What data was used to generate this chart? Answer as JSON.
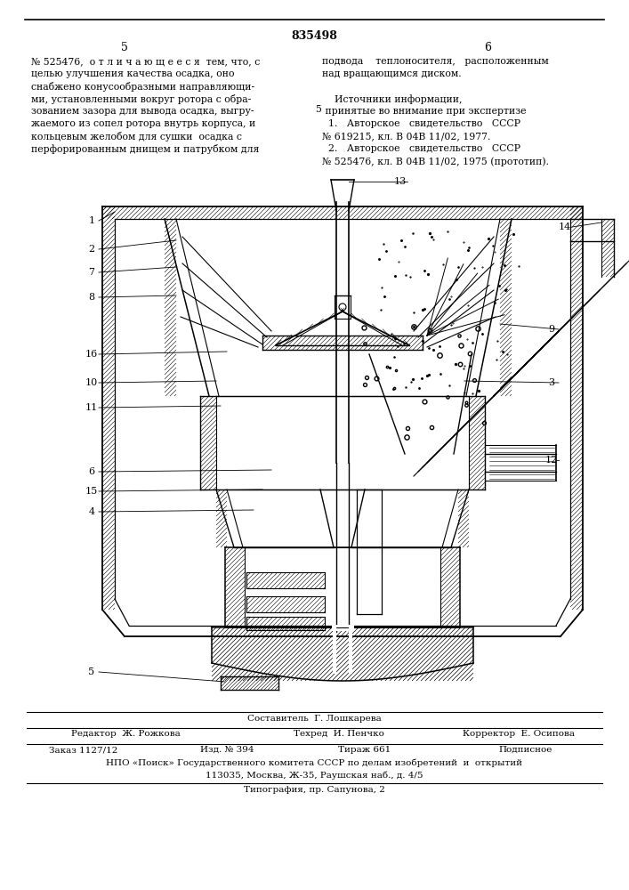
{
  "patent_number": "835498",
  "page_left": "5",
  "page_right": "6",
  "left_column": [
    "№ 525476,  о т л и ч а ю щ е е с я  тем, что, с",
    "целью улучшения качества осадка, оно",
    "снабжено конусообразными направляющи-",
    "ми, установленными вокруг ротора с обра-",
    "зованием зазора для вывода осадка, выгру-",
    "жаемого из сопел ротора внутрь корпуса, и",
    "кольцевым желобом для сушки  осадка с",
    "перфорированным днищем и патрубком для"
  ],
  "right_column": [
    "подвода    теплоносителя,   расположенным",
    "над вращающимся диском.",
    "",
    "    Источники информации,",
    " принятые во внимание при экспертизе",
    "  1.   Авторское   свидетельство   СССР",
    "№ 619215, кл. В 04В 11/02, 1977.",
    "  2.   Авторское   свидетельство   СССР",
    "№ 525476, кл. В 04В 11/02, 1975 (прототип)."
  ],
  "mid_number": "5",
  "footer_compiler": "Составитель  Г. Лошкарева",
  "footer_editor": "Редактор  Ж. Рожкова",
  "footer_techred": "Техред  И. Пенчко",
  "footer_corrector": "Корректор  Е. Осипова",
  "footer_order": "Заказ 1127/12",
  "footer_issue": "Изд. № 394",
  "footer_circ": "Тираж 661",
  "footer_sign": "Подписное",
  "footer_npo": "НПО «Поиск» Государственного комитета СССР по делам изобретений  и  открытий",
  "footer_addr": "113035, Москва, Ж-35, Раушская наб., д. 4/5",
  "footer_typo": "Типография, пр. Сапунова, 2",
  "bg_color": "#ffffff"
}
